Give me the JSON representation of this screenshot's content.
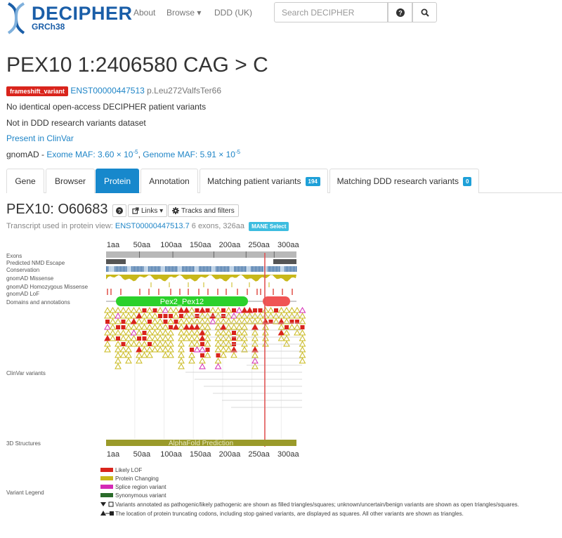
{
  "nav": {
    "logo_text": "DECIPHER",
    "logo_sub": "GRCh38",
    "about": "About",
    "browse": "Browse ▾",
    "ddd": "DDD (UK)",
    "search_placeholder": "Search DECIPHER",
    "help_icon": "question-circle-icon",
    "search_icon": "search-icon"
  },
  "variant": {
    "title": "PEX10 1:2406580 CAG > C",
    "consequence_badge": "frameshift_variant",
    "transcript": "ENST00000447513",
    "hgvs_p": "p.Leu272ValfsTer66",
    "line_patient": "No identical open-access DECIPHER patient variants",
    "line_ddd": "Not in DDD research variants dataset",
    "clinvar": "Present in ClinVar",
    "gnomad_label": "gnomAD -",
    "exome_label": "Exome MAF: 3.60 × 10",
    "exome_exp": "-5",
    "genome_label": "Genome MAF: 5.91 × 10",
    "genome_exp": "-5"
  },
  "tabs": [
    {
      "label": "Gene"
    },
    {
      "label": "Browser"
    },
    {
      "label": "Protein",
      "active": true
    },
    {
      "label": "Annotation"
    },
    {
      "label": "Matching patient variants",
      "count": "194"
    },
    {
      "label": "Matching DDD research variants",
      "count": "0"
    }
  ],
  "protein": {
    "title": "PEX10: O60683",
    "links_label": "Links ▾",
    "tracks_label": "Tracks and filters",
    "transcript_prefix": "Transcript used in protein view:",
    "transcript_link": "ENST00000447513.7",
    "transcript_info": "6 exons, 326aa",
    "mane_badge": "MANE Select",
    "axis_labels": [
      "1aa",
      "50aa",
      "100aa",
      "150aa",
      "200aa",
      "250aa",
      "300aa"
    ],
    "tracks": {
      "exons": "Exons",
      "nmd": "Predicted NMD Escape",
      "conservation": "Conservation",
      "gnomad_missense": "gnomAD Missense",
      "gnomad_hom": "gnomAD Homozygous Missense",
      "gnomad_lof": "gnomAD LoF",
      "domains": "Domains and annotations",
      "clinvar": "ClinVar variants",
      "structures": "3D Structures",
      "legend": "Variant Legend"
    },
    "domain_pex": "Pex2_Pex12",
    "structure_label": "AlphaFold Prediction",
    "protein_length": 326,
    "variant_position": 272
  },
  "legend": [
    {
      "label": "Likely LOF",
      "color": "#d9241c"
    },
    {
      "label": "Protein Changing",
      "color": "#c8b81a"
    },
    {
      "label": "Splice region variant",
      "color": "#d42ab5"
    },
    {
      "label": "Synonymous variant",
      "color": "#2a6b2a"
    }
  ],
  "legend_notes": [
    "Variants annotated as pathogenic/likely pathogenic are shown as filled triangles/squares; unknown/uncertain/benign variants are shown as open triangles/squares.",
    "The location of protein truncating codons, including stop gained variants, are displayed as squares. All other variants are shown as triangles."
  ],
  "colors": {
    "brand": "#1a5ea8",
    "link": "#1f85c7",
    "tab_active": "#1788cc",
    "lof": "#d9241c",
    "missense": "#c8b81a",
    "domain_green": "#2bd12b",
    "domain_red": "#f05454",
    "structure": "#9a9a2a"
  }
}
